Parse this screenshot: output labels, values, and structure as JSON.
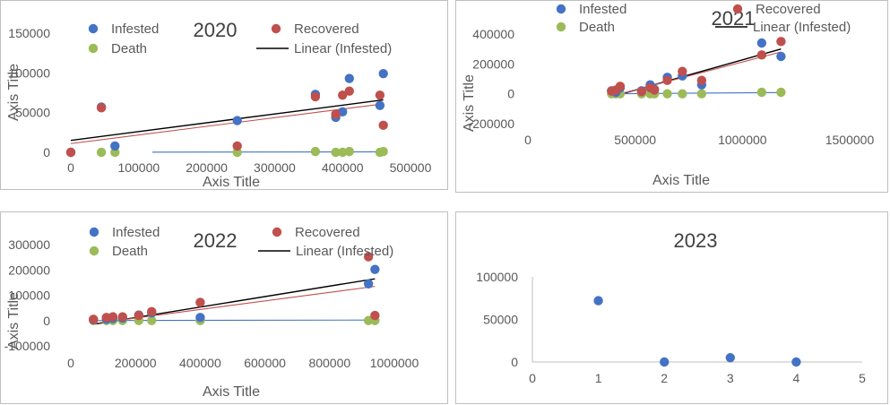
{
  "chart_data": [
    {
      "type": "scatter",
      "title": "2020",
      "xlabel": "Axis Title",
      "ylabel": "Axis Title",
      "xlim": [
        0,
        500000
      ],
      "ylim": [
        0,
        150000
      ],
      "xticks": [
        "0",
        "100000",
        "200000",
        "300000",
        "400000",
        "500000"
      ],
      "yticks": [
        "0",
        "50000",
        "100000",
        "150000"
      ],
      "legend": [
        "Infested",
        "Recovered",
        "Death",
        "Linear (Infested)"
      ],
      "colors": {
        "infested": "#4472c4",
        "recovered": "#c0504d",
        "death": "#9bbb59",
        "trend": "#000000",
        "trend_recovered": "#c0504d",
        "trend_death": "#4472c4"
      },
      "series": [
        {
          "name": "Infested",
          "points": [
            [
              0,
              0
            ],
            [
              45000,
              57000
            ],
            [
              65000,
              8000
            ],
            [
              245000,
              40000
            ],
            [
              360000,
              73000
            ],
            [
              390000,
              44000
            ],
            [
              400000,
              51000
            ],
            [
              410000,
              93000
            ],
            [
              455000,
              59000
            ],
            [
              460000,
              99000
            ]
          ]
        },
        {
          "name": "Recovered",
          "points": [
            [
              0,
              0
            ],
            [
              45000,
              56000
            ],
            [
              245000,
              8000
            ],
            [
              360000,
              70000
            ],
            [
              390000,
              48000
            ],
            [
              400000,
              72000
            ],
            [
              410000,
              77000
            ],
            [
              455000,
              72000
            ],
            [
              460000,
              34000
            ]
          ]
        },
        {
          "name": "Death",
          "points": [
            [
              0,
              0
            ],
            [
              45000,
              0
            ],
            [
              65000,
              0
            ],
            [
              245000,
              0
            ],
            [
              360000,
              1000
            ],
            [
              390000,
              0
            ],
            [
              400000,
              0
            ],
            [
              410000,
              1000
            ],
            [
              455000,
              0
            ],
            [
              460000,
              1000
            ]
          ]
        }
      ],
      "trendlines": [
        {
          "name": "Linear (Infested)",
          "x": [
            0,
            460000
          ],
          "y": [
            15000,
            66000
          ]
        },
        {
          "x": [
            0,
            460000
          ],
          "y": [
            11000,
            61000
          ]
        },
        {
          "x": [
            120000,
            460000
          ],
          "y": [
            200,
            600
          ]
        }
      ]
    },
    {
      "type": "scatter",
      "title": "2021",
      "xlabel": "Axis Title",
      "ylabel": "Axis Title",
      "xlim": [
        0,
        1500000
      ],
      "ylim": [
        -200000,
        400000
      ],
      "xticks": [
        "0",
        "500000",
        "1000000",
        "1500000"
      ],
      "yticks": [
        "-200000",
        "0",
        "200000",
        "400000"
      ],
      "legend": [
        "Infested",
        "Recovered",
        "Death",
        "Linear (Infested)"
      ],
      "series": [
        {
          "name": "Infested",
          "points": [
            [
              390000,
              20000
            ],
            [
              410000,
              10000
            ],
            [
              430000,
              40000
            ],
            [
              530000,
              20000
            ],
            [
              570000,
              60000
            ],
            [
              590000,
              30000
            ],
            [
              650000,
              110000
            ],
            [
              720000,
              120000
            ],
            [
              810000,
              60000
            ],
            [
              1090000,
              340000
            ],
            [
              1180000,
              250000
            ]
          ]
        },
        {
          "name": "Recovered",
          "points": [
            [
              390000,
              18000
            ],
            [
              410000,
              25000
            ],
            [
              430000,
              50000
            ],
            [
              530000,
              15000
            ],
            [
              570000,
              40000
            ],
            [
              590000,
              25000
            ],
            [
              650000,
              90000
            ],
            [
              720000,
              150000
            ],
            [
              810000,
              90000
            ],
            [
              1090000,
              260000
            ],
            [
              1180000,
              350000
            ]
          ]
        },
        {
          "name": "Death",
          "points": [
            [
              390000,
              0
            ],
            [
              410000,
              0
            ],
            [
              430000,
              0
            ],
            [
              530000,
              0
            ],
            [
              570000,
              0
            ],
            [
              590000,
              0
            ],
            [
              650000,
              0
            ],
            [
              720000,
              0
            ],
            [
              810000,
              0
            ],
            [
              1090000,
              10000
            ],
            [
              1180000,
              10000
            ]
          ]
        }
      ],
      "trendlines": [
        {
          "name": "Linear (Infested)",
          "x": [
            390000,
            1180000
          ],
          "y": [
            -20000,
            300000
          ]
        },
        {
          "x": [
            390000,
            1180000
          ],
          "y": [
            -15000,
            280000
          ]
        },
        {
          "x": [
            390000,
            1180000
          ],
          "y": [
            0,
            8000
          ]
        }
      ]
    },
    {
      "type": "scatter",
      "title": "2022",
      "xlabel": "Axis Title",
      "ylabel": "Axis Title",
      "xlim": [
        0,
        1000000
      ],
      "ylim": [
        -100000,
        300000
      ],
      "xticks": [
        "0",
        "200000",
        "400000",
        "600000",
        "800000",
        "1000000"
      ],
      "yticks": [
        "-100000",
        "0",
        "100000",
        "200000",
        "300000"
      ],
      "legend": [
        "Infested",
        "Recovered",
        "Death",
        "Linear (Infested)"
      ],
      "series": [
        {
          "name": "Infested",
          "points": [
            [
              70000,
              3000
            ],
            [
              110000,
              5000
            ],
            [
              130000,
              8000
            ],
            [
              160000,
              10000
            ],
            [
              210000,
              22000
            ],
            [
              250000,
              30000
            ],
            [
              400000,
              12000
            ],
            [
              920000,
              145000
            ],
            [
              940000,
              202000
            ]
          ]
        },
        {
          "name": "Recovered",
          "points": [
            [
              70000,
              5000
            ],
            [
              110000,
              12000
            ],
            [
              130000,
              15000
            ],
            [
              160000,
              15000
            ],
            [
              210000,
              20000
            ],
            [
              250000,
              35000
            ],
            [
              400000,
              72000
            ],
            [
              920000,
              252000
            ],
            [
              940000,
              20000
            ]
          ]
        },
        {
          "name": "Death",
          "points": [
            [
              70000,
              0
            ],
            [
              110000,
              0
            ],
            [
              130000,
              0
            ],
            [
              160000,
              0
            ],
            [
              210000,
              0
            ],
            [
              250000,
              0
            ],
            [
              400000,
              0
            ],
            [
              920000,
              0
            ],
            [
              940000,
              0
            ]
          ]
        }
      ],
      "trendlines": [
        {
          "name": "Linear (Infested)",
          "x": [
            70000,
            940000
          ],
          "y": [
            -15000,
            165000
          ]
        },
        {
          "x": [
            70000,
            940000
          ],
          "y": [
            -12000,
            135000
          ]
        },
        {
          "x": [
            70000,
            940000
          ],
          "y": [
            0,
            2000
          ]
        }
      ]
    },
    {
      "type": "scatter",
      "title": "2023",
      "xlabel": "",
      "ylabel": "",
      "xlim": [
        0,
        5
      ],
      "ylim": [
        0,
        100000
      ],
      "xticks": [
        "0",
        "1",
        "2",
        "3",
        "4",
        "5"
      ],
      "yticks": [
        "0",
        "50000",
        "100000"
      ],
      "legend": [],
      "series": [
        {
          "points": [
            [
              1,
              72000
            ],
            [
              2,
              0
            ],
            [
              3,
              5000
            ],
            [
              4,
              0
            ]
          ]
        }
      ],
      "trendlines": []
    }
  ]
}
